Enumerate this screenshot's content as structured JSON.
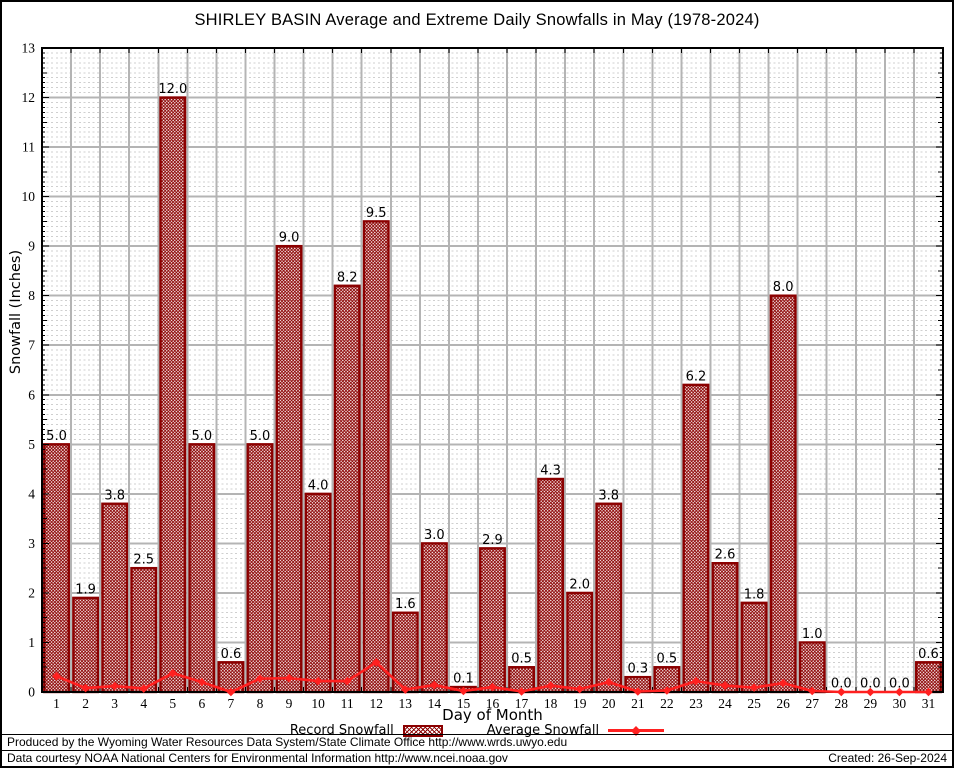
{
  "chart_data": {
    "type": "bar",
    "title": "SHIRLEY BASIN Average and Extreme Daily Snowfalls in May (1978-2024)",
    "xlabel": "Day of Month",
    "ylabel": "Snowfall (Inches)",
    "ylim": [
      0,
      13
    ],
    "ytick_step": 1,
    "yminor_step": 0.1,
    "grid": {
      "major_color": "#b4b4b4",
      "minor_color": "#cfcfcf",
      "minor_dashed": true
    },
    "legend_position": "bottom",
    "categories": [
      "1",
      "2",
      "3",
      "4",
      "5",
      "6",
      "7",
      "8",
      "9",
      "10",
      "11",
      "12",
      "13",
      "14",
      "15",
      "16",
      "17",
      "18",
      "19",
      "20",
      "21",
      "22",
      "23",
      "24",
      "25",
      "26",
      "27",
      "28",
      "29",
      "30",
      "31"
    ],
    "series": [
      {
        "name": "Record Snowfall",
        "type": "bar",
        "color": "#8b0000",
        "fill": "crosshatch",
        "labels_shown": true,
        "values": [
          5.0,
          1.9,
          3.8,
          2.5,
          12.0,
          5.0,
          0.6,
          5.0,
          9.0,
          4.0,
          8.2,
          9.5,
          1.6,
          3.0,
          0.1,
          2.9,
          0.5,
          4.3,
          2.0,
          3.8,
          0.3,
          0.5,
          6.2,
          2.6,
          1.8,
          8.0,
          1.0,
          0.0,
          0.0,
          0.0,
          0.6
        ]
      },
      {
        "name": "Average Snowfall",
        "type": "line",
        "color": "#ff2020",
        "marker": "diamond",
        "values": [
          0.32,
          0.08,
          0.12,
          0.07,
          0.38,
          0.2,
          0.0,
          0.27,
          0.28,
          0.22,
          0.22,
          0.6,
          0.05,
          0.14,
          0.02,
          0.1,
          0.01,
          0.13,
          0.06,
          0.2,
          0.01,
          0.03,
          0.22,
          0.13,
          0.09,
          0.18,
          0.02,
          0.0,
          0.0,
          0.0,
          0.0
        ]
      }
    ]
  },
  "footer": {
    "line1": "Produced by the Wyoming Water Resources Data System/State Climate Office http://www.wrds.uwyo.edu",
    "line2": "Data courtesy NOAA National Centers for Environmental Information http://www.ncei.noaa.gov",
    "created": "Created: 26-Sep-2024"
  }
}
